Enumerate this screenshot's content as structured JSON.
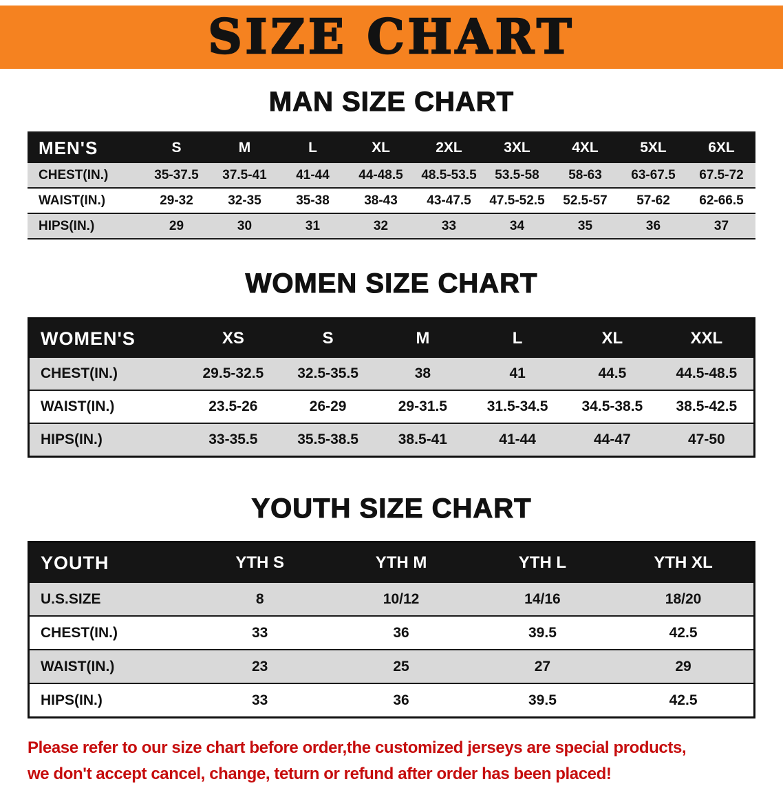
{
  "banner": {
    "title": "SIZE CHART"
  },
  "colors": {
    "banner-bg": "#f58220",
    "table-header-bg": "#151515",
    "row-alt": "#d9d9d9",
    "table-border": "#1a1a1a",
    "footer-red": "#c60d0d"
  },
  "sections": [
    {
      "heading": "MAN SIZE CHART",
      "table": {
        "header": [
          "MEN'S",
          "S",
          "M",
          "L",
          "XL",
          "2XL",
          "3XL",
          "4XL",
          "5XL",
          "6XL"
        ],
        "rows": [
          [
            "CHEST(IN.)",
            "35-37.5",
            "37.5-41",
            "41-44",
            "44-48.5",
            "48.5-53.5",
            "53.5-58",
            "58-63",
            "63-67.5",
            "67.5-72"
          ],
          [
            "WAIST(IN.)",
            "29-32",
            "32-35",
            "35-38",
            "38-43",
            "43-47.5",
            "47.5-52.5",
            "52.5-57",
            "57-62",
            "62-66.5"
          ],
          [
            "HIPS(IN.)",
            "29",
            "30",
            "31",
            "32",
            "33",
            "34",
            "35",
            "36",
            "37"
          ]
        ]
      }
    },
    {
      "heading": "WOMEN SIZE CHART",
      "table": {
        "header": [
          "WOMEN'S",
          "XS",
          "S",
          "M",
          "L",
          "XL",
          "XXL"
        ],
        "rows": [
          [
            "CHEST(IN.)",
            "29.5-32.5",
            "32.5-35.5",
            "38",
            "41",
            "44.5",
            "44.5-48.5"
          ],
          [
            "WAIST(IN.)",
            "23.5-26",
            "26-29",
            "29-31.5",
            "31.5-34.5",
            "34.5-38.5",
            "38.5-42.5"
          ],
          [
            "HIPS(IN.)",
            "33-35.5",
            "35.5-38.5",
            "38.5-41",
            "41-44",
            "44-47",
            "47-50"
          ]
        ]
      }
    },
    {
      "heading": "YOUTH SIZE CHART",
      "table": {
        "header": [
          "YOUTH",
          "YTH S",
          "YTH M",
          "YTH L",
          "YTH XL"
        ],
        "rows": [
          [
            "U.S.SIZE",
            "8",
            "10/12",
            "14/16",
            "18/20"
          ],
          [
            "CHEST(IN.)",
            "33",
            "36",
            "39.5",
            "42.5"
          ],
          [
            "WAIST(IN.)",
            "23",
            "25",
            "27",
            "29"
          ],
          [
            "HIPS(IN.)",
            "33",
            "36",
            "39.5",
            "42.5"
          ]
        ]
      }
    }
  ],
  "footer": {
    "line1": "Please refer to our size chart before order,the customized jerseys are special products,",
    "line2": "we don't accept cancel, change, teturn or refund after order has been placed!"
  }
}
